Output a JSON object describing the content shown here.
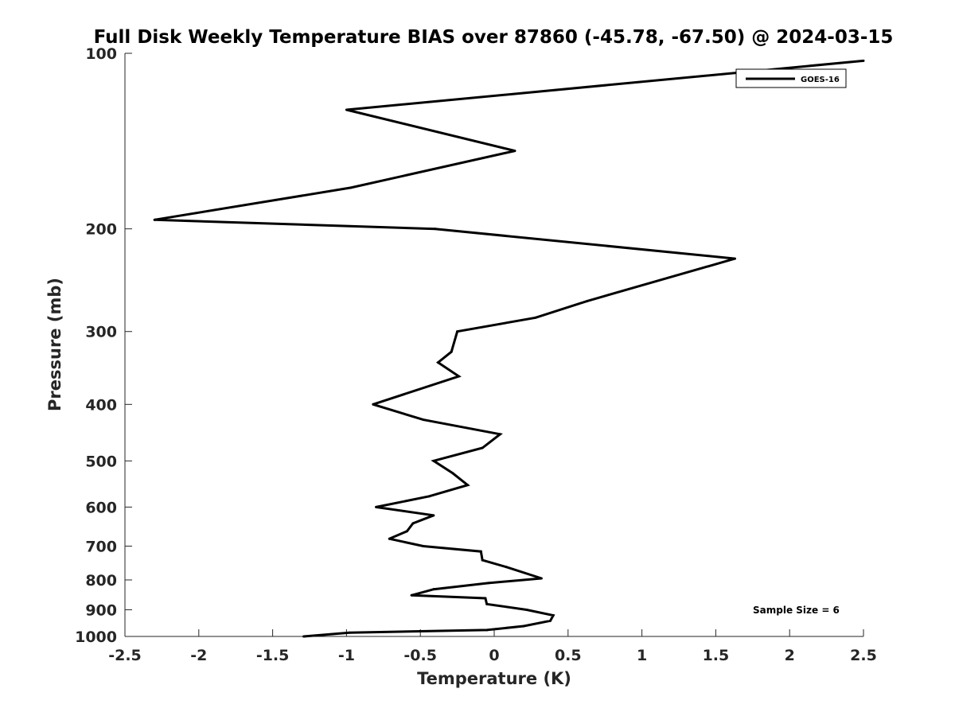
{
  "chart_data": {
    "type": "line",
    "title": "Full Disk Weekly Temperature BIAS over 87860 (-45.78, -67.50) @ 2024-03-15",
    "xlabel": "Temperature (K)",
    "ylabel": "Pressure (mb)",
    "xlim": [
      -2.5,
      2.5
    ],
    "ylim": [
      100,
      1000
    ],
    "y_scale": "log",
    "y_reversed": true,
    "grid": false,
    "legend_position": "top-right",
    "x_ticks": [
      "-2.5",
      "-2",
      "-1.5",
      "-1",
      "-0.5",
      "0",
      "0.5",
      "1",
      "1.5",
      "2",
      "2.5"
    ],
    "y_ticks": [
      "100",
      "200",
      "300",
      "400",
      "500",
      "600",
      "700",
      "800",
      "900",
      "1000"
    ],
    "series": [
      {
        "name": "GOES-16",
        "color": "#000000",
        "points": [
          {
            "x": 2.5,
            "y": 103
          },
          {
            "x": -1.0,
            "y": 125
          },
          {
            "x": 0.14,
            "y": 147
          },
          {
            "x": -0.97,
            "y": 170
          },
          {
            "x": -2.3,
            "y": 193
          },
          {
            "x": -0.4,
            "y": 200
          },
          {
            "x": 1.63,
            "y": 225
          },
          {
            "x": 0.63,
            "y": 266
          },
          {
            "x": 0.28,
            "y": 284
          },
          {
            "x": -0.25,
            "y": 300
          },
          {
            "x": -0.29,
            "y": 325
          },
          {
            "x": -0.38,
            "y": 339
          },
          {
            "x": -0.24,
            "y": 358
          },
          {
            "x": -0.82,
            "y": 400
          },
          {
            "x": -0.48,
            "y": 425
          },
          {
            "x": 0.04,
            "y": 450
          },
          {
            "x": -0.08,
            "y": 475
          },
          {
            "x": -0.41,
            "y": 500
          },
          {
            "x": -0.28,
            "y": 525
          },
          {
            "x": -0.18,
            "y": 550
          },
          {
            "x": -0.44,
            "y": 575
          },
          {
            "x": -0.8,
            "y": 600
          },
          {
            "x": -0.41,
            "y": 620
          },
          {
            "x": -0.55,
            "y": 640
          },
          {
            "x": -0.59,
            "y": 660
          },
          {
            "x": -0.71,
            "y": 680
          },
          {
            "x": -0.48,
            "y": 700
          },
          {
            "x": -0.09,
            "y": 715
          },
          {
            "x": -0.08,
            "y": 740
          },
          {
            "x": 0.08,
            "y": 760
          },
          {
            "x": 0.32,
            "y": 795
          },
          {
            "x": -0.04,
            "y": 810
          },
          {
            "x": -0.41,
            "y": 830
          },
          {
            "x": -0.56,
            "y": 850
          },
          {
            "x": -0.06,
            "y": 860
          },
          {
            "x": -0.05,
            "y": 880
          },
          {
            "x": 0.22,
            "y": 900
          },
          {
            "x": 0.4,
            "y": 920
          },
          {
            "x": 0.38,
            "y": 940
          },
          {
            "x": 0.2,
            "y": 960
          },
          {
            "x": -0.05,
            "y": 975
          },
          {
            "x": -0.98,
            "y": 985
          },
          {
            "x": -1.29,
            "y": 1000
          }
        ]
      }
    ],
    "annotations": [
      "Sample Size = 6"
    ]
  }
}
